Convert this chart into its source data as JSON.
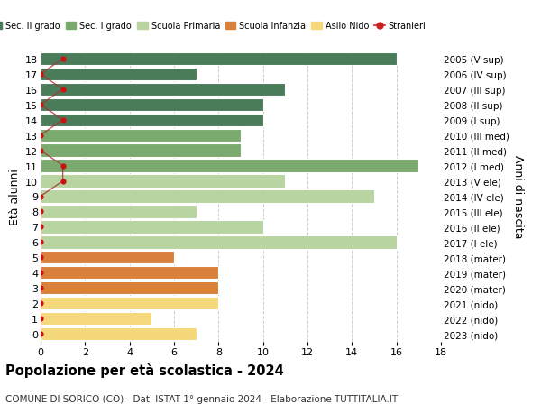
{
  "ages": [
    18,
    17,
    16,
    15,
    14,
    13,
    12,
    11,
    10,
    9,
    8,
    7,
    6,
    5,
    4,
    3,
    2,
    1,
    0
  ],
  "right_labels": [
    "2005 (V sup)",
    "2006 (IV sup)",
    "2007 (III sup)",
    "2008 (II sup)",
    "2009 (I sup)",
    "2010 (III med)",
    "2011 (II med)",
    "2012 (I med)",
    "2013 (V ele)",
    "2014 (IV ele)",
    "2015 (III ele)",
    "2016 (II ele)",
    "2017 (I ele)",
    "2018 (mater)",
    "2019 (mater)",
    "2020 (mater)",
    "2021 (nido)",
    "2022 (nido)",
    "2023 (nido)"
  ],
  "bar_values": [
    16,
    7,
    11,
    10,
    10,
    9,
    9,
    17,
    11,
    15,
    7,
    10,
    16,
    6,
    8,
    8,
    8,
    5,
    7
  ],
  "bar_colors": [
    "#4a7c59",
    "#4a7c59",
    "#4a7c59",
    "#4a7c59",
    "#4a7c59",
    "#7aaa6e",
    "#7aaa6e",
    "#7aaa6e",
    "#b8d4a0",
    "#b8d4a0",
    "#b8d4a0",
    "#b8d4a0",
    "#b8d4a0",
    "#d9813a",
    "#d9813a",
    "#d9813a",
    "#f5d87a",
    "#f5d87a",
    "#f5d87a"
  ],
  "stranieri_x": [
    1,
    0,
    1,
    0,
    1,
    0,
    0,
    1,
    1,
    0,
    0,
    0,
    0,
    0,
    0,
    0,
    0,
    0,
    0
  ],
  "legend_labels": [
    "Sec. II grado",
    "Sec. I grado",
    "Scuola Primaria",
    "Scuola Infanzia",
    "Asilo Nido",
    "Stranieri"
  ],
  "legend_colors": [
    "#4a7c59",
    "#7aaa6e",
    "#b8d4a0",
    "#d9813a",
    "#f5d87a",
    "#cc2222"
  ],
  "ylabel_left": "Età alunni",
  "ylabel_right": "Anni di nascita",
  "title": "Popolazione per età scolastica - 2024",
  "subtitle": "COMUNE DI SORICO (CO) - Dati ISTAT 1° gennaio 2024 - Elaborazione TUTTITALIA.IT",
  "xlim": [
    0,
    18
  ],
  "background_color": "#ffffff",
  "grid_color": "#cccccc"
}
